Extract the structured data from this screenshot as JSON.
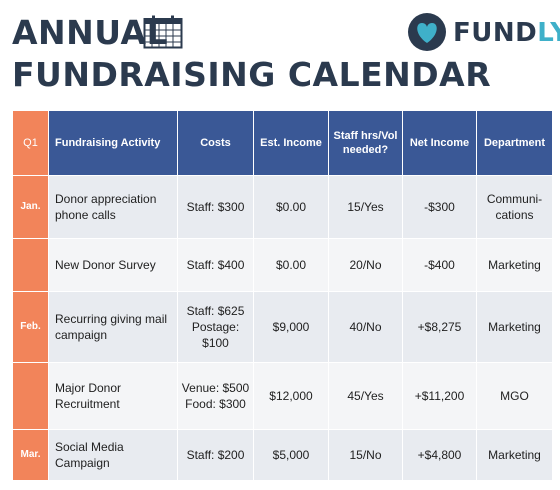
{
  "header": {
    "title_line1": "ANNUAL",
    "title_line2": "FUNDRAISING CALENDAR"
  },
  "logo": {
    "text_main": "FUND",
    "text_accent": "LY",
    "icon": "heart-logo-icon"
  },
  "colors": {
    "title": "#2b3a4e",
    "header_bg": "#3a5896",
    "month_bg": "#f2845a",
    "row_alt_1": "#e8ebf0",
    "row_alt_2": "#f4f5f7",
    "logo_accent": "#3fb0c9"
  },
  "table": {
    "columns": [
      "Q1",
      "Fundraising Activity",
      "Costs",
      "Est. Income",
      "Staff hrs/Vol needed?",
      "Net Income",
      "Department"
    ],
    "rows": [
      {
        "month": "Jan.",
        "activity": "Donor appreciation phone calls",
        "costs": "Staff: $300",
        "est_income": "$0.00",
        "staff": "15/Yes",
        "net_income": "-$300",
        "department": "Communi-cations"
      },
      {
        "month": "",
        "activity": "New Donor Survey",
        "costs": "Staff: $400",
        "est_income": "$0.00",
        "staff": "20/No",
        "net_income": "-$400",
        "department": "Marketing"
      },
      {
        "month": "Feb.",
        "activity": "Recurring giving mail campaign",
        "costs": "Staff: $625 Postage: $100",
        "est_income": "$9,000",
        "staff": "40/No",
        "net_income": "+$8,275",
        "department": "Marketing"
      },
      {
        "month": "",
        "activity": "Major Donor Recruitment",
        "costs": "Venue: $500 Food: $300",
        "est_income": "$12,000",
        "staff": "45/Yes",
        "net_income": "+$11,200",
        "department": "MGO"
      },
      {
        "month": "Mar.",
        "activity": "Social Media Campaign",
        "costs": "Staff: $200",
        "est_income": "$5,000",
        "staff": "15/No",
        "net_income": "+$4,800",
        "department": "Marketing"
      }
    ]
  }
}
